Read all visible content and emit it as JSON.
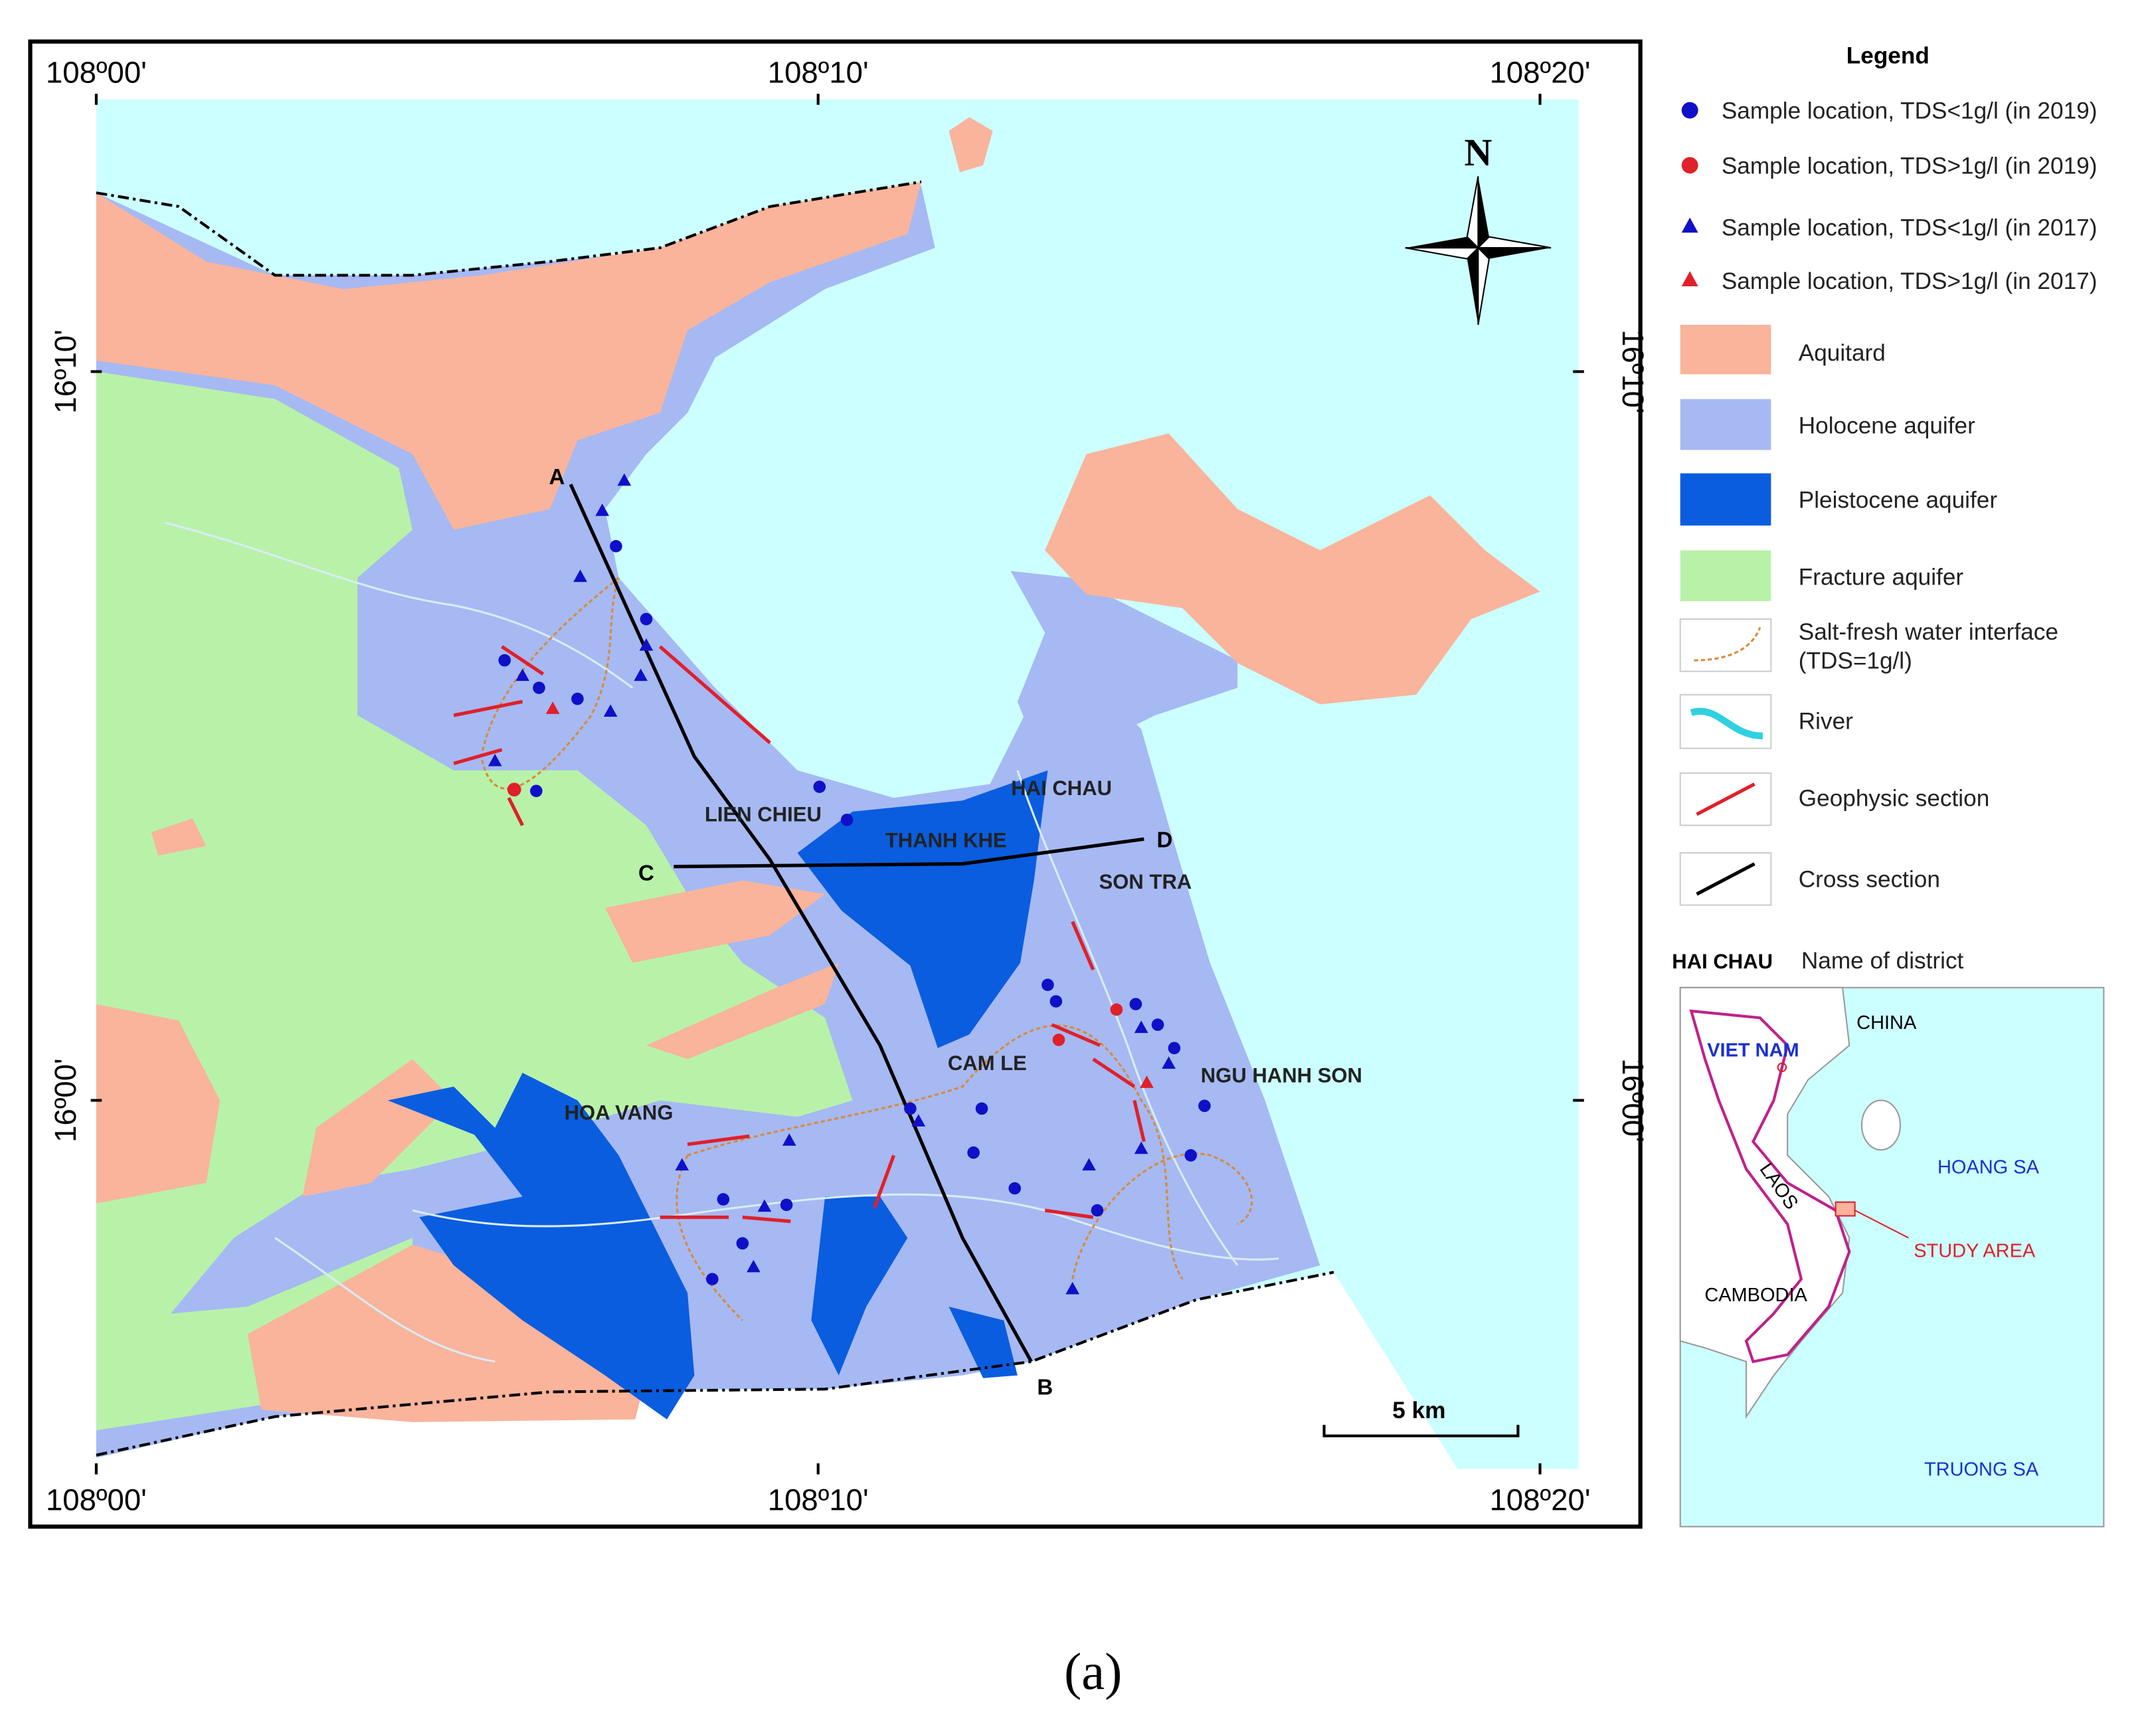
{
  "map": {
    "coordinate_labels": {
      "top": [
        "108º00'",
        "108º10'",
        "108º20'"
      ],
      "bottom": [
        "108º00'",
        "108º10'",
        "108º20'"
      ],
      "left": [
        "16º10'",
        "16º00'"
      ],
      "right": [
        "16º10'",
        "16º00'"
      ]
    },
    "north_label": "N",
    "districts": [
      "LIEN CHIEU",
      "THANH KHE",
      "HAI CHAU",
      "SON TRA",
      "CAM LE",
      "NGU HANH SON",
      "HOA VANG"
    ],
    "section_points": [
      "A",
      "B",
      "C",
      "D"
    ],
    "scale_bar": "5 km"
  },
  "legend": {
    "title": "Legend",
    "items": [
      "Sample location, TDS<1g/l (in 2019)",
      "Sample location, TDS>1g/l (in 2019)",
      "Sample location, TDS<1g/l (in 2017)",
      "Sample location, TDS>1g/l (in 2017)",
      "Aquitard",
      "Holocene aquifer",
      "Pleistocene aquifer",
      "Fracture aquifer",
      "Salt-fresh water interface",
      "(TDS=1g/l)",
      "River",
      "Geophysic section",
      "Cross section"
    ],
    "district_example": "HAI CHAU",
    "district_example_label": "Name of district"
  },
  "inset": {
    "labels": [
      "CHINA",
      "VIET NAM",
      "LAOS",
      "HOANG SA",
      "STUDY AREA",
      "CAMBODIA",
      "TRUONG SA"
    ]
  },
  "caption": "(a)"
}
